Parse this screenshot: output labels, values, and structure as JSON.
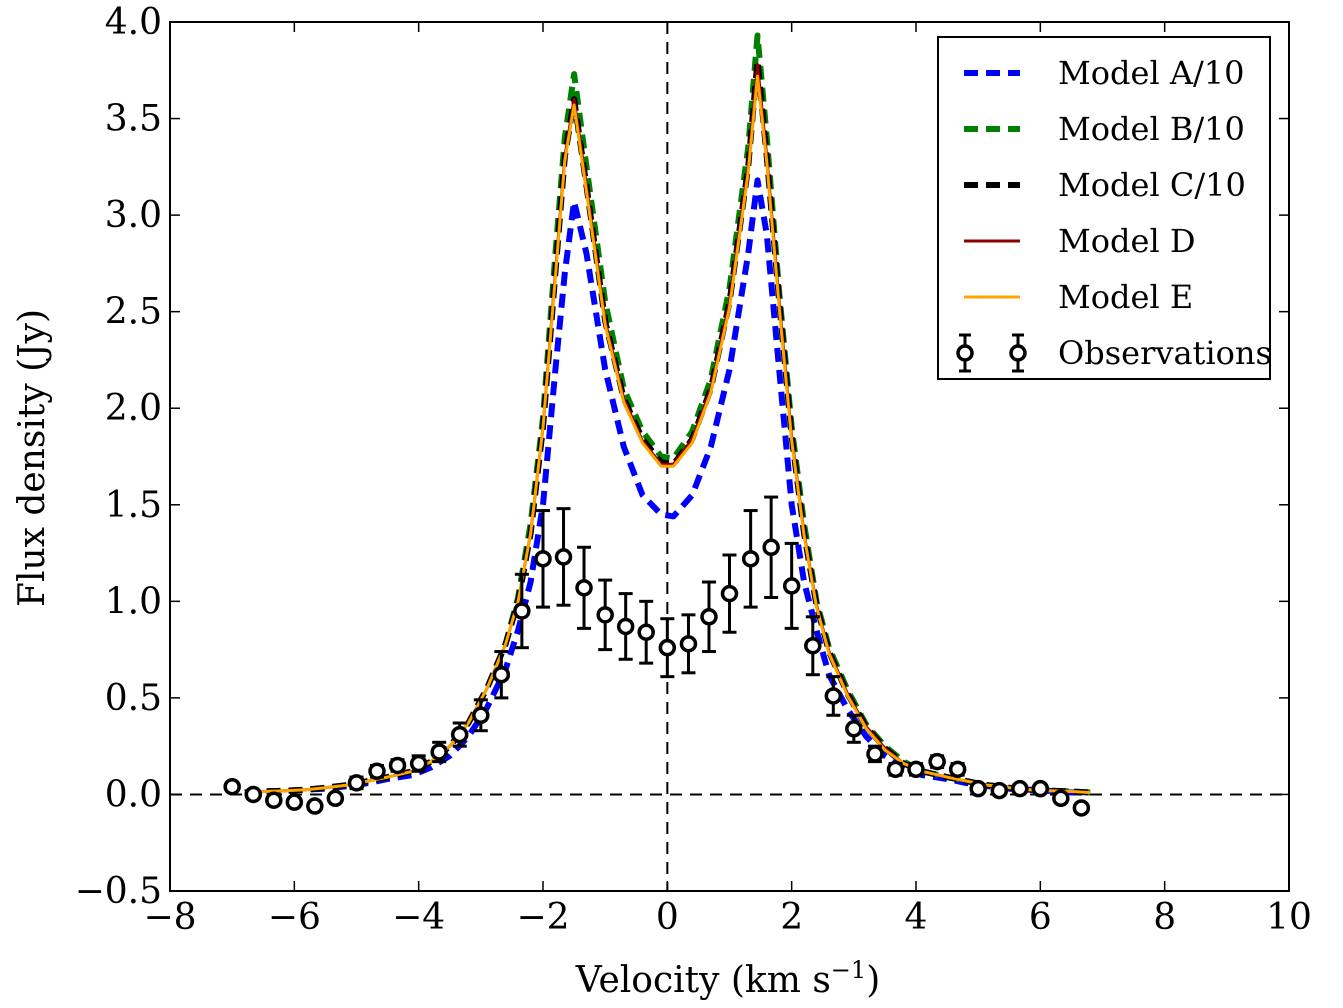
{
  "chart_data": {
    "type": "line",
    "xlabel": "Velocity (km s",
    "xlabel_sup": "−1",
    "xlabel_end": ")",
    "ylabel": "Flux density (Jy)",
    "xlim": [
      -8,
      10
    ],
    "ylim": [
      -0.5,
      4.0
    ],
    "xticks": [
      -8,
      -6,
      -4,
      -2,
      0,
      2,
      4,
      6,
      8,
      10
    ],
    "yticks": [
      -0.5,
      0.0,
      0.5,
      1.0,
      1.5,
      2.0,
      2.5,
      3.0,
      3.5,
      4.0
    ],
    "xtick_labels": [
      "−8",
      "−6",
      "−4",
      "−2",
      "0",
      "2",
      "4",
      "6",
      "8",
      "10"
    ],
    "ytick_labels": [
      "−0.5",
      "0.0",
      "0.5",
      "1.0",
      "1.5",
      "2.0",
      "2.5",
      "3.0",
      "3.5",
      "4.0"
    ],
    "grid": false,
    "legend_position": "top-right",
    "reference_lines": {
      "horizontal_y": 0,
      "vertical_x": 0,
      "style": "dashed"
    },
    "x": [
      -6.8,
      -6.5,
      -6.1,
      -5.8,
      -5.5,
      -5.1,
      -4.8,
      -4.5,
      -4.1,
      -3.8,
      -3.5,
      -3.2,
      -2.9,
      -2.6,
      -2.4,
      -2.2,
      -2.0,
      -1.8,
      -1.65,
      -1.5,
      -1.3,
      -1.0,
      -0.7,
      -0.4,
      -0.1,
      0.1,
      0.4,
      0.7,
      1.0,
      1.3,
      1.45,
      1.6,
      1.8,
      2.0,
      2.2,
      2.4,
      2.6,
      2.9,
      3.2,
      3.5,
      3.8,
      4.1,
      4.5,
      4.8,
      5.1,
      5.5,
      5.8,
      6.1,
      6.5,
      6.8
    ],
    "series": [
      {
        "name": "Model A/10",
        "color": "#0000ff",
        "style": "dashed-thick",
        "values": [
          0.01,
          0.015,
          0.02,
          0.025,
          0.03,
          0.045,
          0.06,
          0.08,
          0.1,
          0.14,
          0.2,
          0.3,
          0.45,
          0.65,
          0.85,
          1.1,
          1.5,
          2.2,
          2.7,
          3.07,
          2.8,
          2.2,
          1.8,
          1.55,
          1.45,
          1.44,
          1.55,
          1.8,
          2.2,
          2.8,
          3.18,
          2.9,
          2.2,
          1.5,
          1.1,
          0.85,
          0.62,
          0.44,
          0.3,
          0.2,
          0.14,
          0.1,
          0.08,
          0.06,
          0.045,
          0.03,
          0.025,
          0.02,
          0.01,
          0.01
        ]
      },
      {
        "name": "Model B/10",
        "color": "#008000",
        "style": "dashed-thick",
        "values": [
          0.01,
          0.015,
          0.02,
          0.025,
          0.035,
          0.05,
          0.07,
          0.09,
          0.12,
          0.17,
          0.25,
          0.37,
          0.55,
          0.78,
          1.02,
          1.4,
          1.95,
          2.8,
          3.4,
          3.73,
          3.25,
          2.55,
          2.1,
          1.88,
          1.75,
          1.74,
          1.88,
          2.15,
          2.62,
          3.35,
          3.93,
          3.4,
          2.6,
          1.9,
          1.4,
          1.0,
          0.76,
          0.54,
          0.36,
          0.25,
          0.17,
          0.12,
          0.09,
          0.07,
          0.05,
          0.035,
          0.025,
          0.02,
          0.015,
          0.01
        ]
      },
      {
        "name": "Model C/10",
        "color": "#000000",
        "style": "dashed-thick",
        "values": [
          0.01,
          0.015,
          0.02,
          0.025,
          0.035,
          0.05,
          0.07,
          0.09,
          0.12,
          0.17,
          0.25,
          0.37,
          0.55,
          0.78,
          1.0,
          1.35,
          1.9,
          2.7,
          3.3,
          3.6,
          3.15,
          2.45,
          2.05,
          1.84,
          1.72,
          1.71,
          1.84,
          2.1,
          2.55,
          3.25,
          3.8,
          3.3,
          2.55,
          1.85,
          1.35,
          0.98,
          0.74,
          0.52,
          0.35,
          0.24,
          0.16,
          0.12,
          0.09,
          0.07,
          0.05,
          0.035,
          0.025,
          0.02,
          0.015,
          0.01
        ]
      },
      {
        "name": "Model D",
        "color": "#8b0000",
        "style": "solid",
        "values": [
          0.01,
          0.015,
          0.02,
          0.025,
          0.035,
          0.05,
          0.07,
          0.09,
          0.12,
          0.17,
          0.25,
          0.37,
          0.55,
          0.78,
          1.0,
          1.35,
          1.9,
          2.7,
          3.3,
          3.6,
          3.15,
          2.45,
          2.05,
          1.83,
          1.71,
          1.71,
          1.84,
          2.1,
          2.55,
          3.25,
          3.78,
          3.3,
          2.55,
          1.85,
          1.35,
          0.98,
          0.74,
          0.52,
          0.35,
          0.24,
          0.16,
          0.12,
          0.09,
          0.07,
          0.05,
          0.035,
          0.025,
          0.02,
          0.015,
          0.01
        ]
      },
      {
        "name": "Model E",
        "color": "#ffa500",
        "style": "solid",
        "values": [
          0.01,
          0.015,
          0.02,
          0.025,
          0.035,
          0.05,
          0.07,
          0.09,
          0.12,
          0.17,
          0.25,
          0.37,
          0.55,
          0.78,
          1.0,
          1.35,
          1.9,
          2.68,
          3.28,
          3.57,
          3.12,
          2.43,
          2.03,
          1.82,
          1.7,
          1.7,
          1.82,
          2.08,
          2.52,
          3.22,
          3.72,
          3.27,
          2.52,
          1.83,
          1.34,
          0.97,
          0.73,
          0.51,
          0.34,
          0.23,
          0.16,
          0.12,
          0.09,
          0.07,
          0.05,
          0.035,
          0.025,
          0.02,
          0.015,
          0.01
        ]
      }
    ],
    "observations": {
      "name": "Observations",
      "color": "#000000",
      "marker": "open-circle",
      "x": [
        -7.0,
        -6.66,
        -6.33,
        -6.0,
        -5.67,
        -5.34,
        -5.0,
        -4.67,
        -4.34,
        -4.0,
        -3.67,
        -3.34,
        -3.0,
        -2.67,
        -2.34,
        -2.0,
        -1.67,
        -1.34,
        -1.0,
        -0.67,
        -0.34,
        0.0,
        0.34,
        0.67,
        1.0,
        1.34,
        1.67,
        2.0,
        2.34,
        2.67,
        3.0,
        3.34,
        3.67,
        4.0,
        4.34,
        4.67,
        5.0,
        5.34,
        5.67,
        6.0,
        6.33,
        6.66
      ],
      "y": [
        0.04,
        0.0,
        -0.03,
        -0.04,
        -0.06,
        -0.02,
        0.06,
        0.12,
        0.15,
        0.16,
        0.22,
        0.31,
        0.41,
        0.62,
        0.95,
        1.22,
        1.23,
        1.07,
        0.93,
        0.87,
        0.84,
        0.76,
        0.78,
        0.92,
        1.04,
        1.22,
        1.28,
        1.08,
        0.77,
        0.51,
        0.34,
        0.21,
        0.13,
        0.13,
        0.17,
        0.13,
        0.03,
        0.02,
        0.03,
        0.03,
        -0.02,
        -0.07
      ],
      "yerr": [
        0.02,
        0.02,
        0.02,
        0.02,
        0.02,
        0.02,
        0.03,
        0.03,
        0.03,
        0.04,
        0.05,
        0.06,
        0.08,
        0.12,
        0.19,
        0.25,
        0.25,
        0.21,
        0.18,
        0.17,
        0.16,
        0.15,
        0.15,
        0.18,
        0.2,
        0.25,
        0.26,
        0.22,
        0.15,
        0.1,
        0.07,
        0.04,
        0.03,
        0.03,
        0.03,
        0.03,
        0.02,
        0.02,
        0.02,
        0.02,
        0.02,
        0.02
      ]
    }
  }
}
